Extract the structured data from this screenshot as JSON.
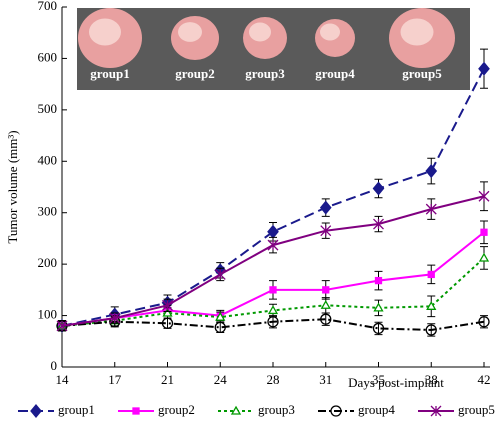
{
  "chart_data": {
    "type": "line",
    "x_label": "Days post-implant",
    "y_label": "Tumor volume (mm³)",
    "categories": [
      "14",
      "17",
      "21",
      "24",
      "28",
      "31",
      "35",
      "38",
      "42"
    ],
    "ylim": [
      0,
      700
    ],
    "yticks": [
      0,
      100,
      200,
      300,
      400,
      500,
      600,
      700
    ],
    "legend": "bottom",
    "inset_labels": [
      "group1",
      "group2",
      "group3",
      "group4",
      "group5"
    ],
    "series": [
      {
        "name": "group1",
        "color": "#1a1a8c",
        "marker": "diamond",
        "dash": "10,5",
        "values": [
          80,
          102,
          125,
          188,
          263,
          310,
          347,
          381,
          580
        ],
        "errors": [
          10,
          15,
          15,
          15,
          18,
          17,
          18,
          25,
          38
        ]
      },
      {
        "name": "group2",
        "color": "#ff00ff",
        "marker": "square",
        "dash": "",
        "values": [
          80,
          95,
          110,
          100,
          150,
          150,
          168,
          180,
          262
        ],
        "errors": [
          10,
          10,
          10,
          10,
          18,
          18,
          18,
          18,
          22
        ]
      },
      {
        "name": "group3",
        "color": "#009900",
        "marker": "triangle",
        "dash": "3,3",
        "values": [
          80,
          90,
          105,
          97,
          110,
          120,
          115,
          118,
          212
        ],
        "errors": [
          10,
          10,
          10,
          10,
          12,
          15,
          15,
          20,
          22
        ]
      },
      {
        "name": "group4",
        "color": "#000000",
        "marker": "circle",
        "dash": "8,3,2,3",
        "values": [
          80,
          88,
          85,
          77,
          88,
          93,
          75,
          72,
          88
        ],
        "errors": [
          10,
          10,
          10,
          10,
          12,
          12,
          12,
          12,
          12
        ]
      },
      {
        "name": "group5",
        "color": "#800080",
        "marker": "star",
        "dash": "",
        "values": [
          80,
          95,
          120,
          180,
          237,
          265,
          278,
          307,
          332
        ],
        "errors": [
          10,
          10,
          12,
          12,
          15,
          15,
          15,
          20,
          28
        ]
      }
    ]
  }
}
